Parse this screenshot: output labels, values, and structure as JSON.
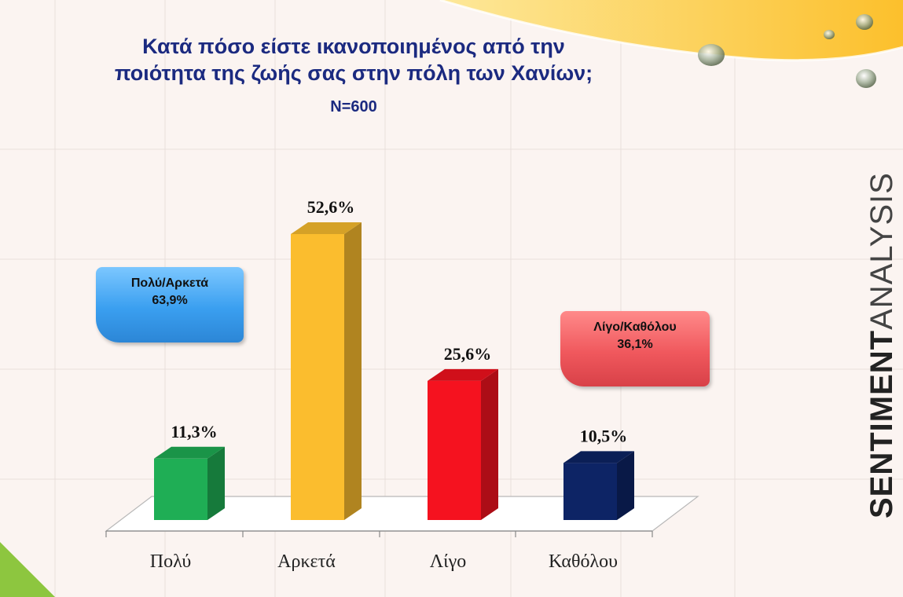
{
  "title_line1": "Κατά πόσο είστε ικανοποιημένος από την",
  "title_line2": "ποιότητα της ζωής σας στην πόλη των Χανίων;",
  "sample": "N=600",
  "callouts": {
    "positive": {
      "label": "Πολύ/Αρκετά",
      "value": "63,9%"
    },
    "negative": {
      "label": "Λίγο/Καθόλου",
      "value": "36,1%"
    }
  },
  "brand": {
    "bold": "SENTIMENT",
    "light": "ANALYSIS"
  },
  "colors": {
    "green": "#1fae55",
    "yellow": "#fbbd2e",
    "red": "#f5121f",
    "navy": "#0d2465",
    "title": "#1b2a80"
  },
  "chart_data": {
    "type": "bar",
    "categories": [
      "Πολύ",
      "Αρκετά",
      "Λίγο",
      "Καθόλου"
    ],
    "values": [
      11.3,
      52.6,
      25.6,
      10.5
    ],
    "labels": [
      "11,3%",
      "52,6%",
      "25,6%",
      "10,5%"
    ],
    "colors": [
      "#1fae55",
      "#fbbd2e",
      "#f5121f",
      "#0d2465"
    ],
    "title": "Κατά πόσο είστε ικανοποιημένος από την ποιότητα της ζωής σας στην πόλη των Χανίων;",
    "xlabel": "",
    "ylabel": "",
    "ylim": [
      0,
      60
    ],
    "grid": false
  }
}
